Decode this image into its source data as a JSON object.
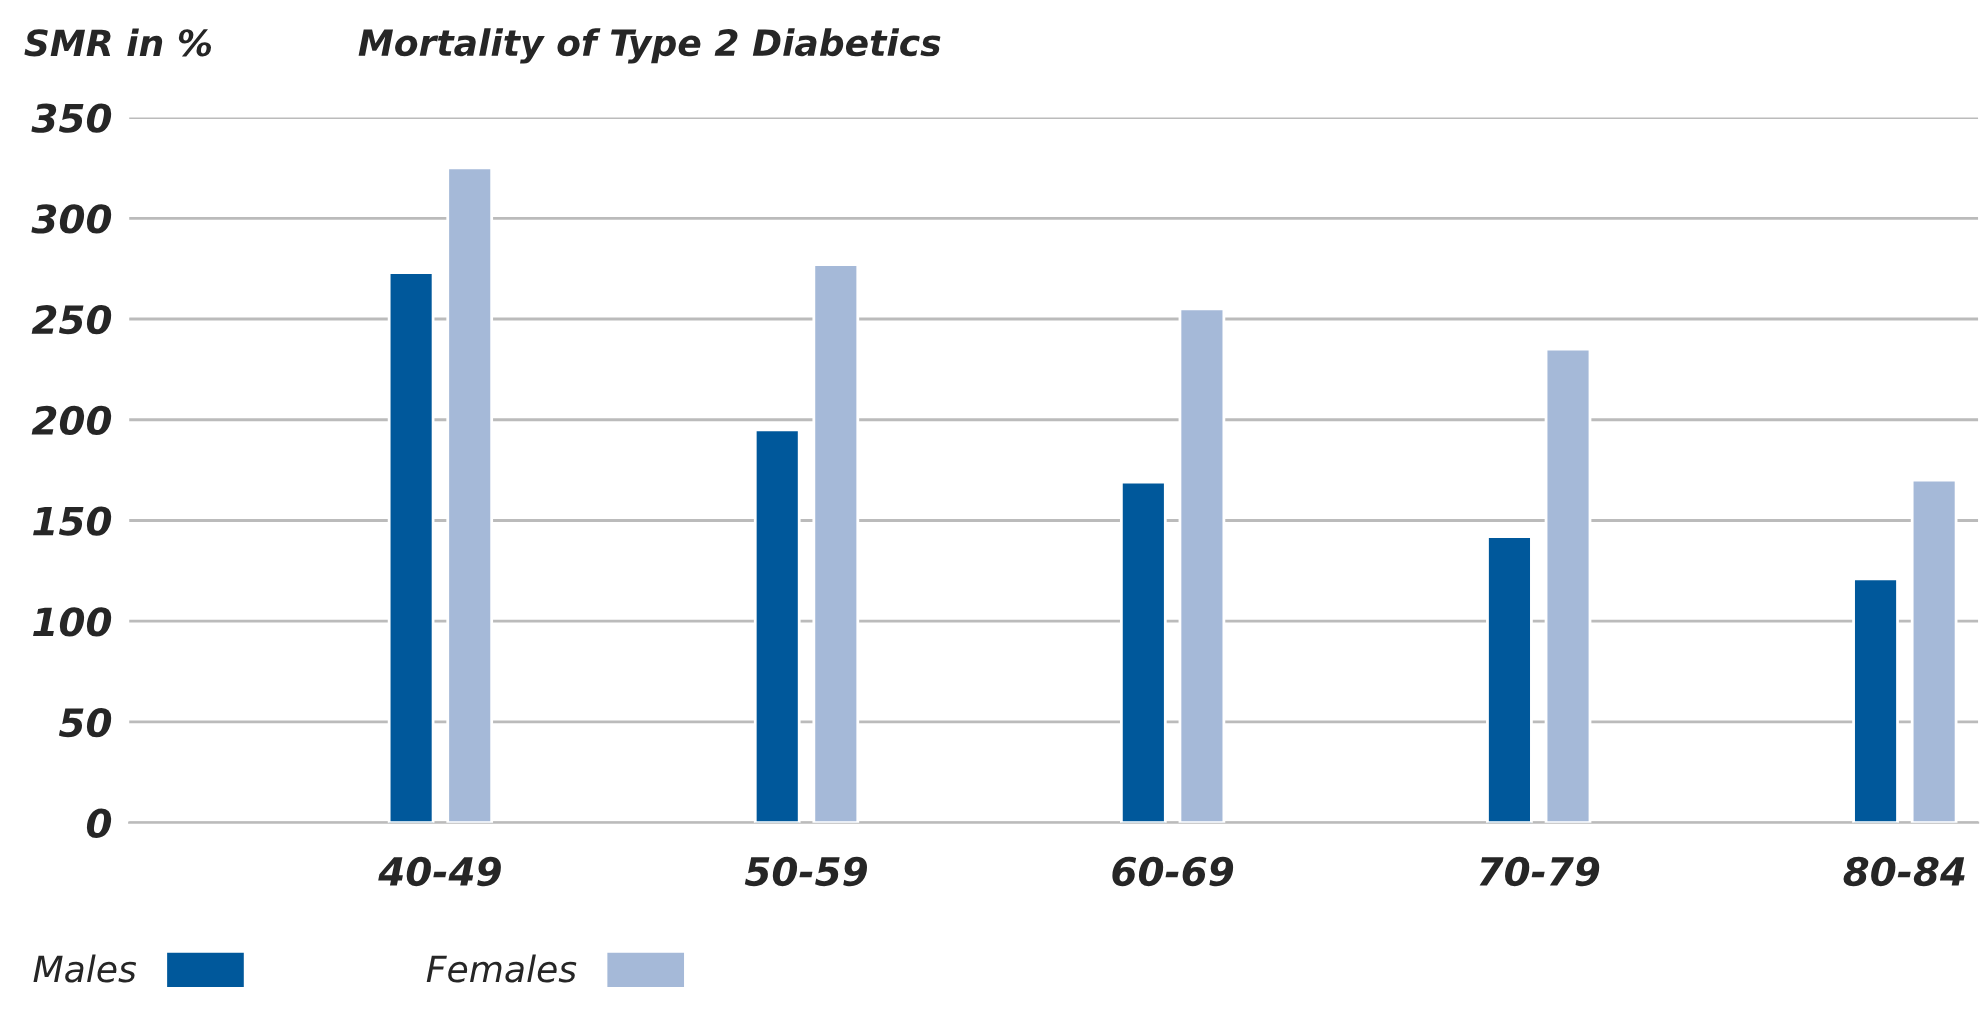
{
  "chart_data": {
    "type": "bar",
    "title": "Mortality of Type 2 Diabetics",
    "ylabel": "SMR in %",
    "categories": [
      "40-49",
      "50-59",
      "60-69",
      "70-79",
      "80-84"
    ],
    "series": [
      {
        "name": "Males",
        "color": "#00589b",
        "values": [
          273,
          195,
          169,
          142,
          121
        ]
      },
      {
        "name": "Females",
        "color": "#a5b9d8",
        "values": [
          325,
          277,
          255,
          235,
          170
        ]
      }
    ],
    "ylim": [
      0,
      350
    ],
    "yticks": [
      0,
      50,
      100,
      150,
      200,
      250,
      300,
      350
    ],
    "grid": "y",
    "legend": "bottom left"
  }
}
